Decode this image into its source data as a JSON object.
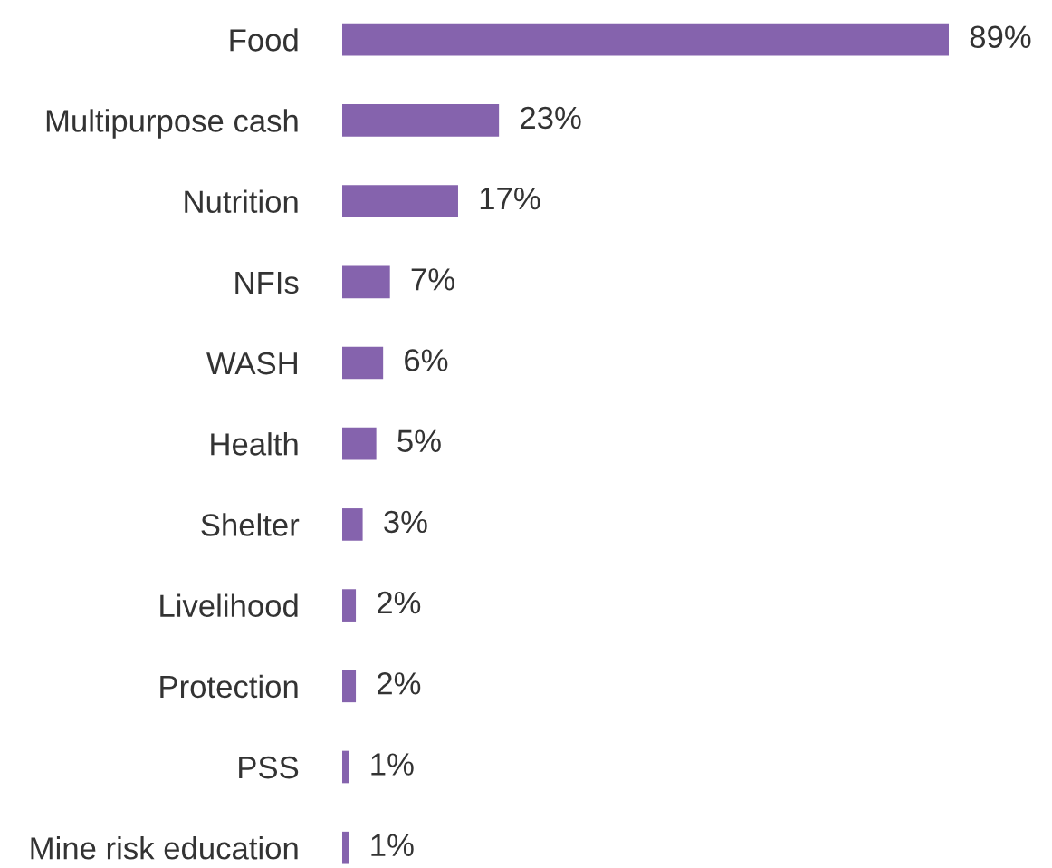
{
  "chart_data": {
    "type": "bar",
    "orientation": "horizontal",
    "categories": [
      "Food",
      "Multipurpose cash",
      "Nutrition",
      "NFIs",
      "WASH",
      "Health",
      "Shelter",
      "Livelihood",
      "Protection",
      "PSS",
      "Mine risk education"
    ],
    "values": [
      89,
      23,
      17,
      7,
      6,
      5,
      3,
      2,
      2,
      1,
      1
    ],
    "value_labels": [
      "89%",
      "23%",
      "17%",
      "7%",
      "6%",
      "5%",
      "3%",
      "2%",
      "2%",
      "1%",
      "1%"
    ],
    "color": "#8563ad",
    "grid": false,
    "legend": false
  }
}
